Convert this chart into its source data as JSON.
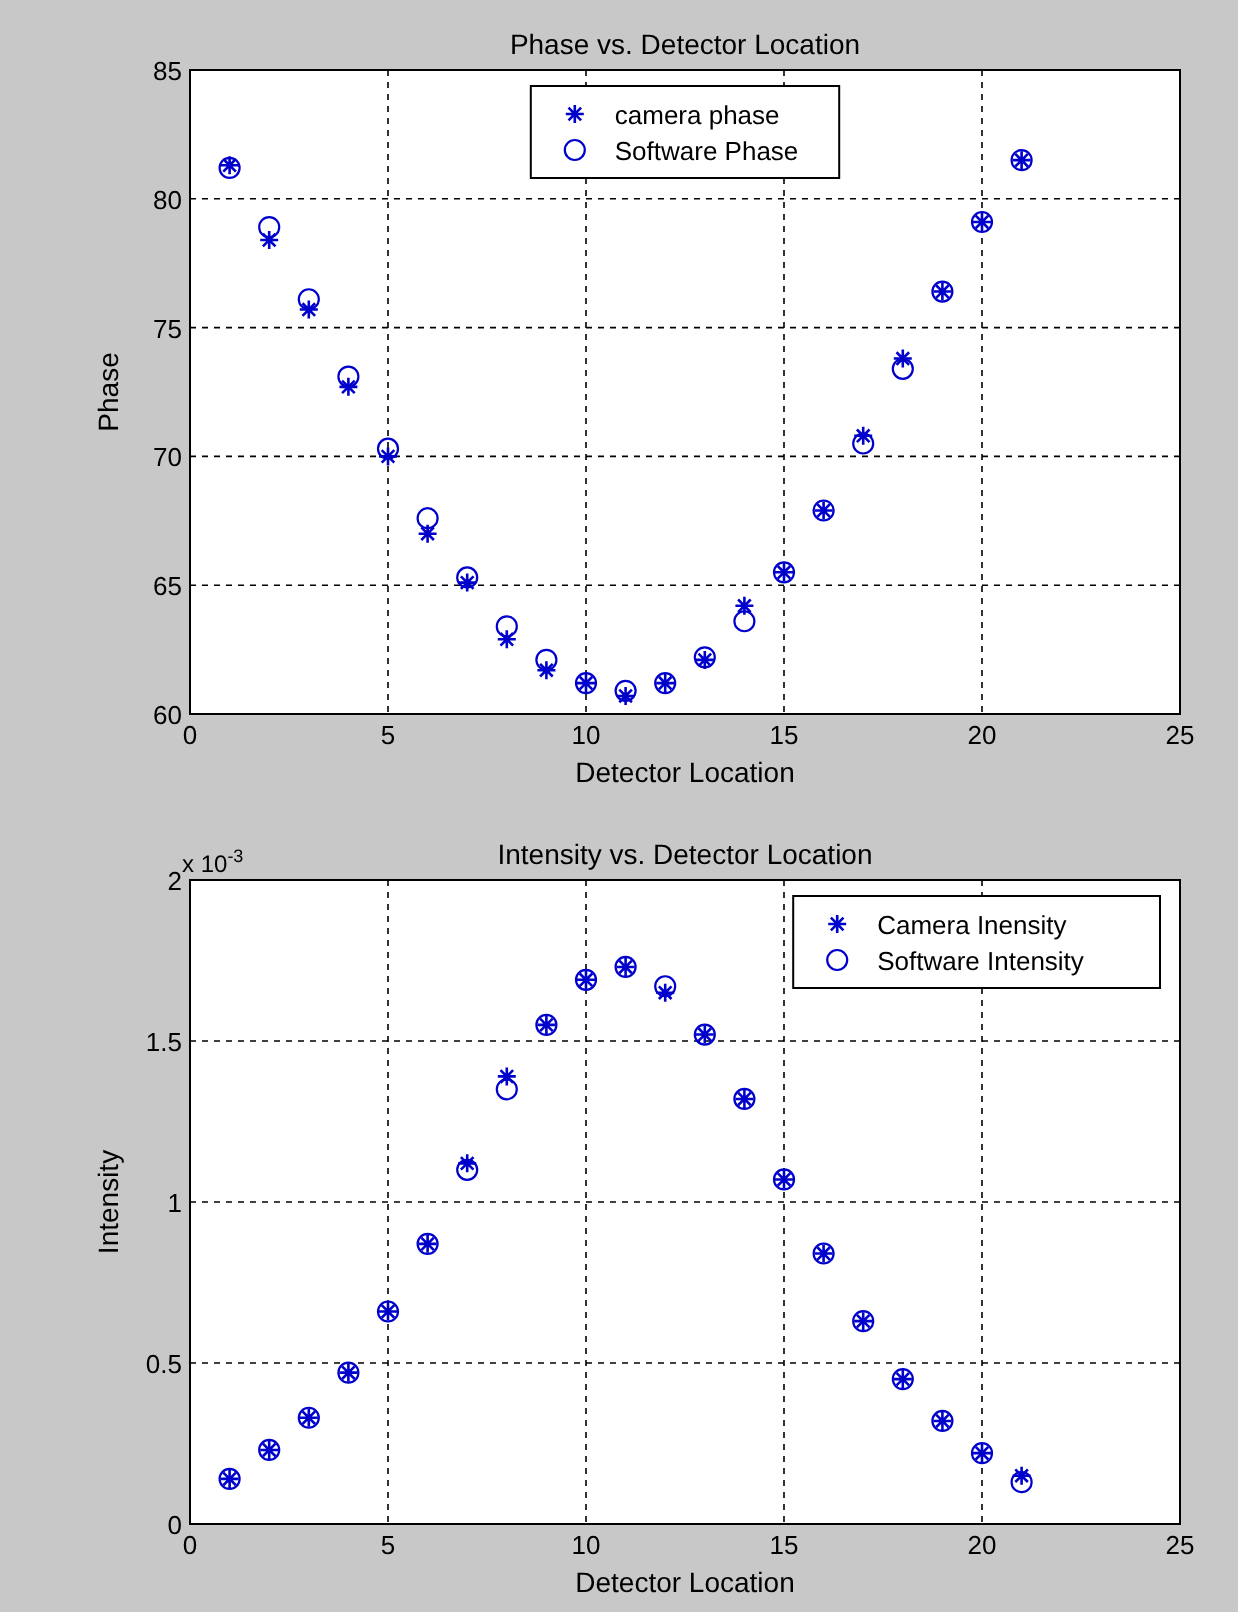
{
  "chart_data": [
    {
      "type": "scatter",
      "title": "Phase vs. Detector Location",
      "xlabel": "Detector Location",
      "ylabel": "Phase",
      "x": [
        1,
        2,
        3,
        4,
        5,
        6,
        7,
        8,
        9,
        10,
        11,
        12,
        13,
        14,
        15,
        16,
        17,
        18,
        19,
        20,
        21
      ],
      "xlim": [
        0,
        25
      ],
      "xticks": [
        0,
        5,
        10,
        15,
        20,
        25
      ],
      "ylim": [
        60,
        85
      ],
      "yticks": [
        60,
        65,
        70,
        75,
        80,
        85
      ],
      "grid": true,
      "legend": "top",
      "series": [
        {
          "name": "camera phase",
          "color": "#0000cc",
          "marker": "cross",
          "values": [
            81.3,
            78.4,
            75.7,
            72.7,
            70.0,
            67.0,
            65.1,
            62.9,
            61.7,
            61.2,
            60.7,
            61.2,
            62.1,
            64.2,
            65.5,
            67.9,
            70.8,
            73.8,
            76.4,
            79.1,
            81.5
          ]
        },
        {
          "name": "Software Phase",
          "color": "#0000cc",
          "marker": "circle",
          "values": [
            81.2,
            78.9,
            76.1,
            73.1,
            70.3,
            67.6,
            65.3,
            63.4,
            62.1,
            61.2,
            60.9,
            61.2,
            62.2,
            63.6,
            65.5,
            67.9,
            70.5,
            73.4,
            76.4,
            79.1,
            81.5
          ]
        }
      ]
    },
    {
      "type": "scatter",
      "title": "Intensity vs. Detector Location",
      "xlabel": "Detector Location",
      "ylabel": "Intensity",
      "annotations": [
        "x 10$^{-3}$"
      ],
      "x": [
        1,
        2,
        3,
        4,
        5,
        6,
        7,
        8,
        9,
        10,
        11,
        12,
        13,
        14,
        15,
        16,
        17,
        18,
        19,
        20,
        21
      ],
      "xlim": [
        0,
        25
      ],
      "xticks": [
        0,
        5,
        10,
        15,
        20,
        25
      ],
      "ylim": [
        0,
        2
      ],
      "yticks": [
        0,
        0.5,
        1,
        1.5,
        2
      ],
      "grid": true,
      "legend": "top right",
      "series": [
        {
          "name": "Camera Inensity",
          "color": "#0000cc",
          "marker": "cross",
          "values": [
            0.14,
            0.23,
            0.33,
            0.47,
            0.66,
            0.87,
            1.12,
            1.39,
            1.55,
            1.69,
            1.73,
            1.65,
            1.52,
            1.32,
            1.07,
            0.84,
            0.63,
            0.45,
            0.32,
            0.22,
            0.15
          ]
        },
        {
          "name": "Software Intensity",
          "color": "#0000cc",
          "marker": "circle",
          "values": [
            0.14,
            0.23,
            0.33,
            0.47,
            0.66,
            0.87,
            1.1,
            1.35,
            1.55,
            1.69,
            1.73,
            1.67,
            1.52,
            1.32,
            1.07,
            0.84,
            0.63,
            0.45,
            0.32,
            0.22,
            0.13
          ]
        }
      ]
    }
  ]
}
